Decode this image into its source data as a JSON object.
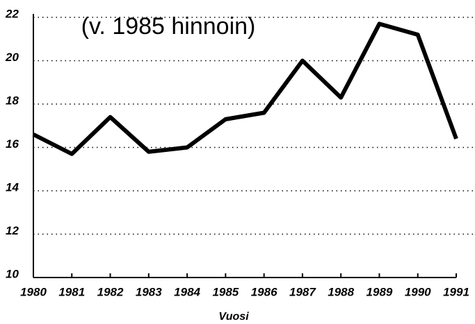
{
  "chart_data": {
    "type": "line",
    "title": "(v. 1985 hinnoin)",
    "xlabel": "Vuosi",
    "x": [
      1980,
      1981,
      1982,
      1983,
      1984,
      1985,
      1986,
      1987,
      1988,
      1989,
      1990,
      1991
    ],
    "series": [
      {
        "color": "#000000",
        "values": [
          16.6,
          15.7,
          17.4,
          15.8,
          16.0,
          17.3,
          17.6,
          20.0,
          18.3,
          21.7,
          21.2,
          16.4
        ]
      }
    ],
    "xlim": [
      1980,
      1991
    ],
    "xticks": [
      1980,
      1981,
      1982,
      1983,
      1984,
      1985,
      1986,
      1987,
      1988,
      1989,
      1990,
      1991
    ],
    "ylim": [
      10,
      22
    ],
    "yticks": [
      10,
      12,
      14,
      16,
      18,
      20,
      22
    ],
    "grid": true
  }
}
